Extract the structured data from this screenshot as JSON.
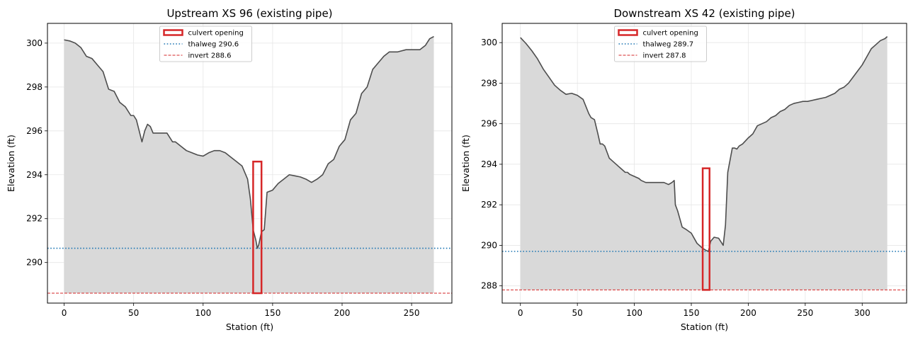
{
  "chart_data": [
    {
      "type": "area",
      "title": "Upstream XS 96 (existing pipe)",
      "xlabel": "Station (ft)",
      "ylabel": "Elevation (ft)",
      "xlim": [
        -12,
        279
      ],
      "ylim": [
        288.15,
        300.9
      ],
      "xticks": [
        0,
        50,
        100,
        150,
        200,
        250
      ],
      "yticks": [
        290,
        292,
        294,
        296,
        298,
        300
      ],
      "grid": true,
      "legend_position": "top-center",
      "legend": [
        "culvert opening",
        "thalweg 290.6",
        "invert 288.6"
      ],
      "colors": {
        "terrain_line": "#4d4d4d",
        "terrain_fill": "#d9d9d9",
        "culvert": "#d62728",
        "thalweg": "#1f77b4",
        "invert": "#d62728"
      },
      "thalweg": 290.65,
      "invert": 288.6,
      "culvert": {
        "x0": 136,
        "x1": 142,
        "y0": 288.6,
        "y1": 294.6
      },
      "profile": {
        "x": [
          0,
          4,
          8,
          12,
          16,
          20,
          24,
          28,
          32,
          36,
          40,
          44,
          48,
          50,
          52,
          54,
          56,
          58,
          60,
          62,
          64,
          66,
          70,
          74,
          78,
          80,
          84,
          88,
          92,
          96,
          100,
          104,
          108,
          112,
          116,
          120,
          124,
          128,
          132,
          134,
          136,
          138,
          139,
          140,
          142,
          144,
          146,
          150,
          154,
          158,
          162,
          166,
          170,
          174,
          178,
          182,
          186,
          190,
          194,
          198,
          202,
          206,
          210,
          214,
          218,
          222,
          226,
          230,
          234,
          240,
          246,
          252,
          256,
          260,
          263,
          266
        ],
        "y": [
          300.15,
          300.1,
          300.0,
          299.8,
          299.4,
          299.3,
          299.0,
          298.7,
          297.9,
          297.8,
          297.3,
          297.1,
          296.7,
          296.7,
          296.5,
          296.0,
          295.5,
          296.0,
          296.3,
          296.2,
          295.9,
          295.9,
          295.9,
          295.9,
          295.5,
          295.5,
          295.3,
          295.1,
          295.0,
          294.9,
          294.85,
          295.0,
          295.1,
          295.1,
          295.0,
          294.8,
          294.6,
          294.4,
          293.8,
          292.9,
          291.5,
          291.0,
          290.65,
          290.8,
          291.4,
          291.5,
          293.2,
          293.3,
          293.6,
          293.8,
          294.0,
          293.95,
          293.9,
          293.8,
          293.65,
          293.8,
          294.0,
          294.5,
          294.7,
          295.3,
          295.6,
          296.5,
          296.8,
          297.7,
          298.0,
          298.8,
          299.1,
          299.4,
          299.6,
          299.6,
          299.7,
          299.7,
          299.7,
          299.9,
          300.2,
          300.3
        ]
      }
    },
    {
      "type": "area",
      "title": "Downstream XS 42 (existing pipe)",
      "xlabel": "Station (ft)",
      "ylabel": "Elevation (ft)",
      "xlim": [
        -16,
        339
      ],
      "ylim": [
        287.15,
        300.95
      ],
      "xticks": [
        0,
        50,
        100,
        150,
        200,
        250,
        300
      ],
      "yticks": [
        288,
        290,
        292,
        294,
        296,
        298,
        300
      ],
      "grid": true,
      "legend_position": "top-center",
      "legend": [
        "culvert opening",
        "thalweg 289.7",
        "invert 287.8"
      ],
      "colors": {
        "terrain_line": "#4d4d4d",
        "terrain_fill": "#d9d9d9",
        "culvert": "#d62728",
        "thalweg": "#1f77b4",
        "invert": "#d62728"
      },
      "thalweg": 289.7,
      "invert": 287.8,
      "culvert": {
        "x0": 160,
        "x1": 166,
        "y0": 287.8,
        "y1": 293.8
      },
      "profile": {
        "x": [
          0,
          5,
          10,
          15,
          20,
          25,
          30,
          35,
          40,
          45,
          50,
          55,
          60,
          62,
          65,
          68,
          70,
          72,
          74,
          76,
          78,
          80,
          82,
          84,
          86,
          88,
          90,
          92,
          94,
          96,
          100,
          104,
          106,
          110,
          114,
          118,
          122,
          126,
          130,
          133,
          135,
          136,
          138,
          140,
          142,
          145,
          150,
          155,
          160,
          163,
          165,
          167,
          170,
          174,
          178,
          180,
          182,
          184,
          186,
          188,
          190,
          192,
          195,
          200,
          204,
          208,
          212,
          216,
          220,
          224,
          228,
          232,
          236,
          240,
          244,
          248,
          252,
          256,
          260,
          264,
          268,
          272,
          276,
          280,
          284,
          288,
          292,
          296,
          300,
          304,
          308,
          312,
          316,
          320,
          322
        ],
        "y": [
          300.25,
          299.95,
          299.6,
          299.2,
          298.7,
          298.3,
          297.9,
          297.65,
          297.45,
          297.5,
          297.4,
          297.2,
          296.5,
          296.3,
          296.2,
          295.5,
          295.0,
          295.0,
          294.9,
          294.6,
          294.3,
          294.2,
          294.1,
          294.0,
          293.9,
          293.8,
          293.7,
          293.6,
          293.6,
          293.5,
          293.4,
          293.3,
          293.2,
          293.1,
          293.1,
          293.1,
          293.1,
          293.1,
          293.0,
          293.1,
          293.2,
          292.0,
          291.7,
          291.3,
          290.9,
          290.8,
          290.6,
          290.1,
          289.85,
          289.75,
          289.7,
          290.2,
          290.4,
          290.35,
          290.0,
          291.0,
          293.6,
          294.2,
          294.8,
          294.8,
          294.75,
          294.9,
          295.0,
          295.3,
          295.5,
          295.9,
          296.0,
          296.1,
          296.3,
          296.4,
          296.6,
          296.7,
          296.9,
          297.0,
          297.05,
          297.1,
          297.1,
          297.15,
          297.2,
          297.25,
          297.3,
          297.4,
          297.5,
          297.7,
          297.8,
          298.0,
          298.3,
          298.6,
          298.9,
          299.3,
          299.7,
          299.9,
          300.1,
          300.2,
          300.3
        ]
      }
    }
  ]
}
